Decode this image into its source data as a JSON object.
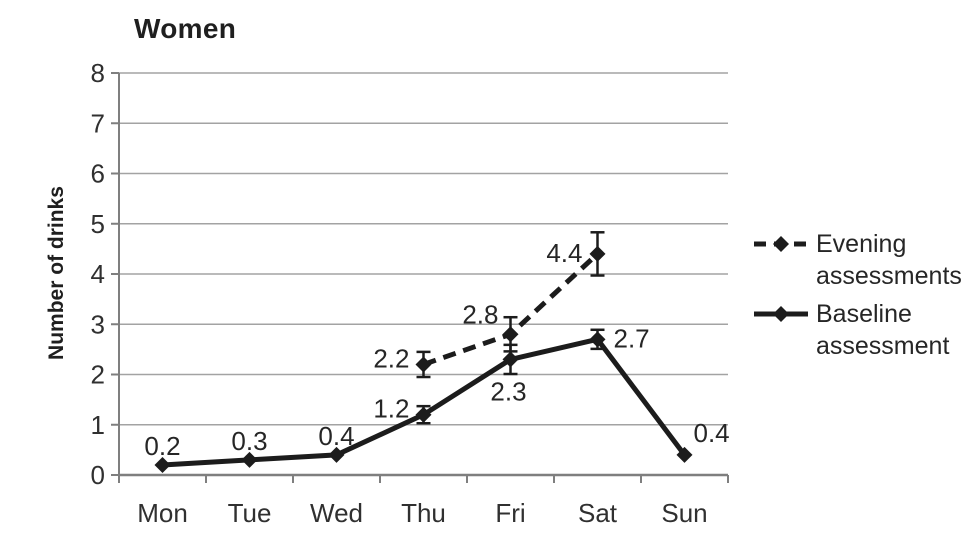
{
  "chart_data": {
    "type": "line",
    "title": "Women",
    "xlabel": "",
    "ylabel": "Number of drinks",
    "categories": [
      "Mon",
      "Tue",
      "Wed",
      "Thu",
      "Fri",
      "Sat",
      "Sun"
    ],
    "ylim": [
      0,
      8
    ],
    "ytick_step": 1,
    "grid": true,
    "legend_position": "right",
    "colors": {
      "line": "#1c1c1c",
      "grid": "#a3a3a3",
      "axis": "#7f7f7f",
      "text": "#303030"
    },
    "series": [
      {
        "name": "Evening assessments",
        "style": "dashed",
        "marker": "diamond",
        "values": [
          null,
          null,
          null,
          2.2,
          2.8,
          4.4,
          null
        ],
        "errors": [
          null,
          null,
          null,
          0.25,
          0.34,
          0.43,
          null
        ],
        "point_labels": [
          null,
          null,
          null,
          "2.2",
          "2.8",
          "4.4",
          null
        ],
        "label_placement": [
          null,
          null,
          null,
          "left-up",
          "above-left",
          "left",
          null
        ]
      },
      {
        "name": "Baseline assessment",
        "style": "solid",
        "marker": "diamond",
        "values": [
          0.2,
          0.3,
          0.4,
          1.2,
          2.3,
          2.7,
          0.4
        ],
        "errors": [
          null,
          null,
          null,
          0.17,
          0.29,
          0.19,
          null
        ],
        "point_labels": [
          "0.2",
          "0.3",
          "0.4",
          "1.2",
          "2.3",
          "2.7",
          "0.4"
        ],
        "label_placement": [
          "above",
          "above",
          "above",
          "left-up",
          "below",
          "right",
          "above-right"
        ]
      }
    ]
  }
}
